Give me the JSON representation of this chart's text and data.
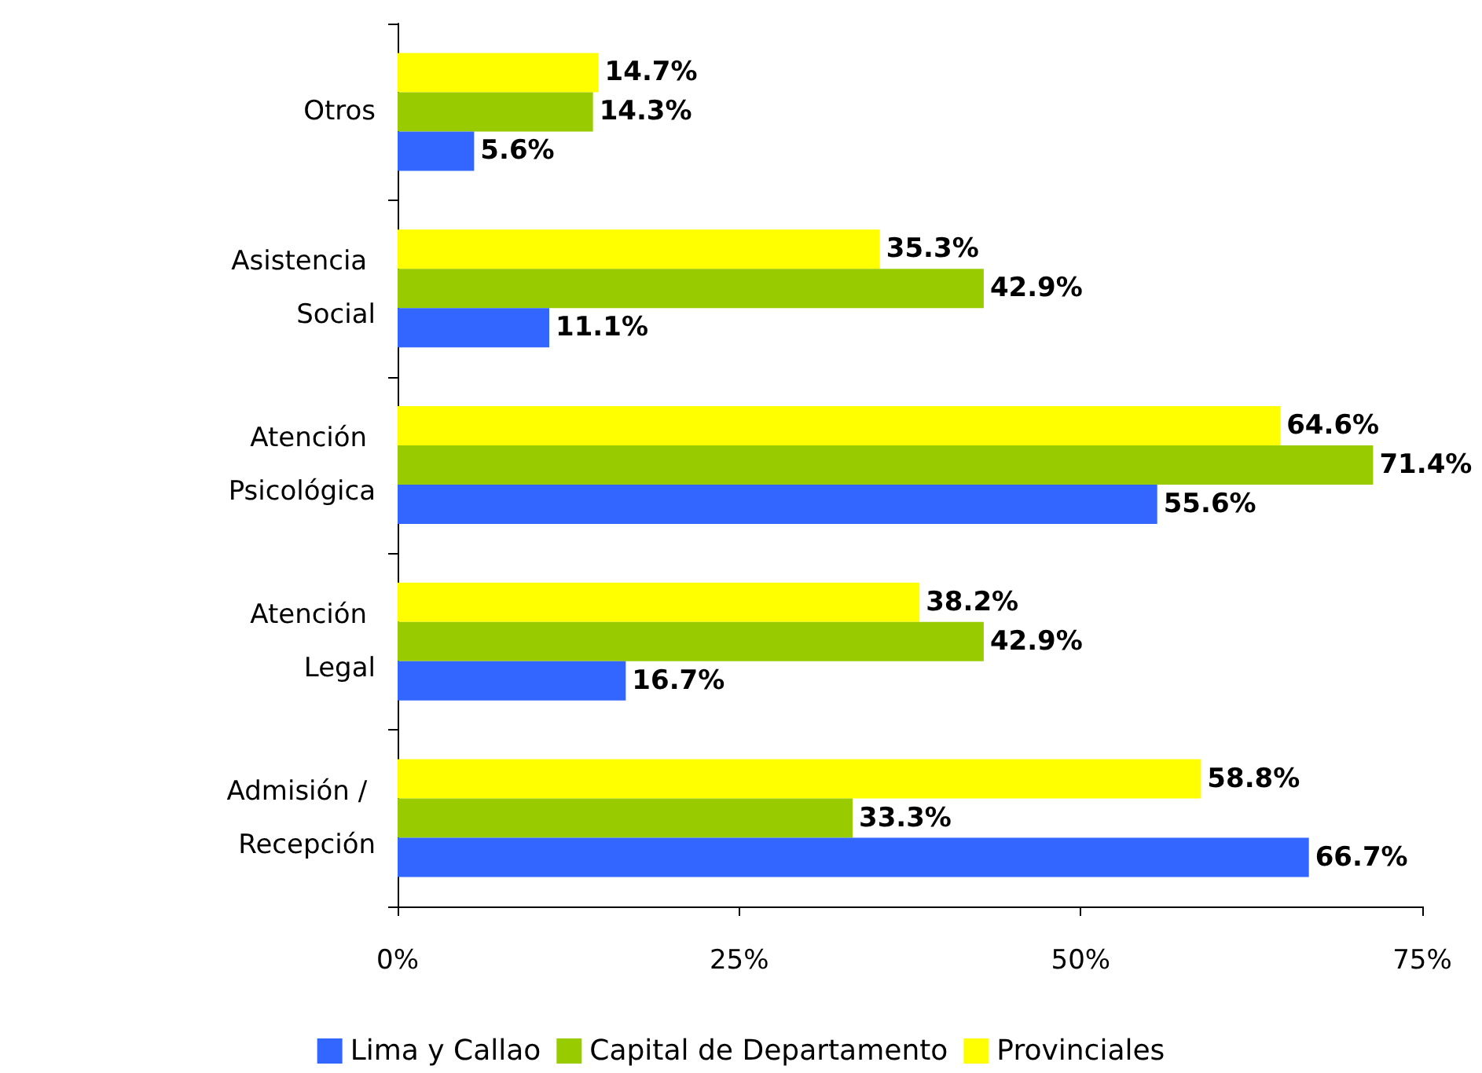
{
  "chart_data": {
    "type": "bar",
    "orientation": "horizontal",
    "categories": [
      "Otros",
      "Asistencia Social",
      "Atención Psicológica",
      "Atención Legal",
      "Admisión / Recepción"
    ],
    "series": [
      {
        "name": "Lima y Callao",
        "color": "#3366ff",
        "values": [
          5.6,
          11.1,
          55.6,
          16.7,
          66.7
        ],
        "value_labels": [
          "5.6%",
          "11.1%",
          "55.6%",
          "16.7%",
          "66.7%"
        ]
      },
      {
        "name": "Capital de Departamento",
        "color": "#99cc00",
        "values": [
          14.3,
          42.9,
          71.4,
          42.9,
          33.3
        ],
        "value_labels": [
          "14.3%",
          "42.9%",
          "71.4%",
          "42.9%",
          "33.3%"
        ]
      },
      {
        "name": "Provinciales",
        "color": "#ffff00",
        "values": [
          14.7,
          35.3,
          64.6,
          38.2,
          58.8
        ],
        "value_labels": [
          "14.7%",
          "35.3%",
          "64.6%",
          "38.2%",
          "58.8%"
        ]
      }
    ],
    "xlim": [
      0,
      75
    ],
    "xticks": [
      {
        "value": 0,
        "label": "0%"
      },
      {
        "value": 25,
        "label": "25%"
      },
      {
        "value": 50,
        "label": "50%"
      },
      {
        "value": 75,
        "label": "75%"
      }
    ],
    "grid": false,
    "legend": "bottom"
  }
}
